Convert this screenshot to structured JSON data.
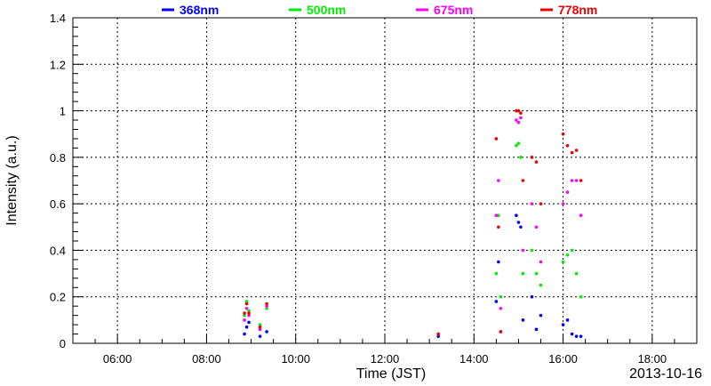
{
  "chart_data": {
    "type": "scatter",
    "title": "",
    "xlabel": "Time (JST)",
    "ylabel": "Intensity (a.u.)",
    "date_label": "2013-10-16",
    "x_unit": "hours JST",
    "xlim": [
      5.0,
      19.0
    ],
    "ylim": [
      0,
      1.4
    ],
    "x_ticks": [
      6,
      8,
      10,
      12,
      14,
      16,
      18
    ],
    "x_tick_labels": [
      "06:00",
      "08:00",
      "10:00",
      "12:00",
      "14:00",
      "16:00",
      "18:00"
    ],
    "y_ticks": [
      0,
      0.2,
      0.4,
      0.6,
      0.8,
      1,
      1.2,
      1.4
    ],
    "y_tick_labels": [
      "0",
      "0.2",
      "0.4",
      "0.6",
      "0.8",
      "1",
      "1.2",
      "1.4"
    ],
    "grid": true,
    "legend_position": "top",
    "series": [
      {
        "name": "368nm",
        "color": "#0000ff",
        "points": [
          [
            8.85,
            0.04
          ],
          [
            8.9,
            0.07
          ],
          [
            8.95,
            0.09
          ],
          [
            9.2,
            0.03
          ],
          [
            9.35,
            0.05
          ],
          [
            13.2,
            0.03
          ],
          [
            14.5,
            0.18
          ],
          [
            14.55,
            0.35
          ],
          [
            14.6,
            0.05
          ],
          [
            14.95,
            0.55
          ],
          [
            15.0,
            0.52
          ],
          [
            15.05,
            0.5
          ],
          [
            15.1,
            0.1
          ],
          [
            15.3,
            0.2
          ],
          [
            15.4,
            0.06
          ],
          [
            15.5,
            0.12
          ],
          [
            16.0,
            0.08
          ],
          [
            16.1,
            0.1
          ],
          [
            16.2,
            0.04
          ],
          [
            16.3,
            0.03
          ],
          [
            16.4,
            0.03
          ]
        ]
      },
      {
        "name": "500nm",
        "color": "#00ee00",
        "points": [
          [
            8.85,
            0.12
          ],
          [
            8.9,
            0.18
          ],
          [
            8.95,
            0.14
          ],
          [
            9.2,
            0.08
          ],
          [
            9.35,
            0.15
          ],
          [
            13.2,
            0.04
          ],
          [
            14.5,
            0.3
          ],
          [
            14.55,
            0.55
          ],
          [
            14.6,
            0.2
          ],
          [
            14.95,
            0.85
          ],
          [
            15.0,
            0.86
          ],
          [
            15.05,
            0.8
          ],
          [
            15.1,
            0.3
          ],
          [
            15.3,
            0.4
          ],
          [
            15.4,
            0.3
          ],
          [
            15.5,
            0.25
          ],
          [
            16.0,
            0.35
          ],
          [
            16.1,
            0.38
          ],
          [
            16.2,
            0.4
          ],
          [
            16.3,
            0.3
          ],
          [
            16.4,
            0.2
          ]
        ]
      },
      {
        "name": "675nm",
        "color": "#ff00ff",
        "points": [
          [
            8.85,
            0.1
          ],
          [
            8.9,
            0.15
          ],
          [
            8.95,
            0.12
          ],
          [
            9.2,
            0.06
          ],
          [
            9.35,
            0.16
          ],
          [
            13.2,
            0.04
          ],
          [
            14.5,
            0.55
          ],
          [
            14.55,
            0.7
          ],
          [
            14.6,
            0.15
          ],
          [
            14.95,
            0.96
          ],
          [
            15.0,
            0.95
          ],
          [
            15.05,
            0.97
          ],
          [
            15.1,
            0.4
          ],
          [
            15.3,
            0.6
          ],
          [
            15.4,
            0.5
          ],
          [
            15.5,
            0.35
          ],
          [
            16.0,
            0.6
          ],
          [
            16.1,
            0.65
          ],
          [
            16.2,
            0.7
          ],
          [
            16.3,
            0.7
          ],
          [
            16.4,
            0.55
          ]
        ]
      },
      {
        "name": "778nm",
        "color": "#ee0000",
        "points": [
          [
            8.85,
            0.13
          ],
          [
            8.9,
            0.17
          ],
          [
            8.95,
            0.13
          ],
          [
            9.2,
            0.07
          ],
          [
            9.35,
            0.17
          ],
          [
            13.2,
            0.04
          ],
          [
            14.5,
            0.88
          ],
          [
            14.55,
            0.5
          ],
          [
            14.6,
            0.05
          ],
          [
            14.95,
            1.0
          ],
          [
            15.0,
            1.0
          ],
          [
            15.05,
            0.99
          ],
          [
            15.1,
            0.7
          ],
          [
            15.3,
            0.8
          ],
          [
            15.4,
            0.78
          ],
          [
            15.5,
            0.6
          ],
          [
            16.0,
            0.9
          ],
          [
            16.1,
            0.85
          ],
          [
            16.2,
            0.82
          ],
          [
            16.3,
            0.83
          ],
          [
            16.4,
            0.7
          ]
        ]
      }
    ]
  }
}
